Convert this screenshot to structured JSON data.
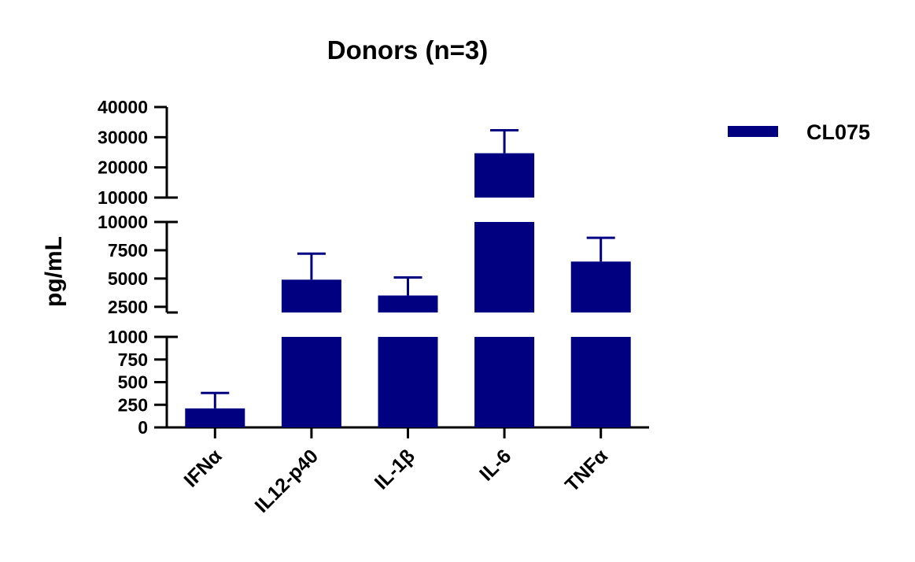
{
  "chart_data": {
    "type": "bar",
    "title": "Donors (n=3)",
    "ylabel": "pg/mL",
    "xlabel": "",
    "categories": [
      "IFNα",
      "IL12-p40",
      "IL-1β",
      "IL-6",
      "TNFα"
    ],
    "series": [
      {
        "name": "CL075",
        "color": "#000080",
        "values": [
          210,
          4900,
          3500,
          24700,
          6500
        ],
        "error_upper": [
          380,
          7200,
          5100,
          32300,
          8600
        ]
      }
    ],
    "y_axis_segments": [
      {
        "range": [
          0,
          1000
        ],
        "ticks": [
          0,
          250,
          500,
          750,
          1000
        ]
      },
      {
        "range": [
          2000,
          10000
        ],
        "ticks": [
          2500,
          5000,
          7500,
          10000
        ]
      },
      {
        "range": [
          10000,
          40000
        ],
        "ticks": [
          10000,
          20000,
          30000,
          40000
        ]
      }
    ],
    "legend_position": "top-right",
    "grid": false
  }
}
